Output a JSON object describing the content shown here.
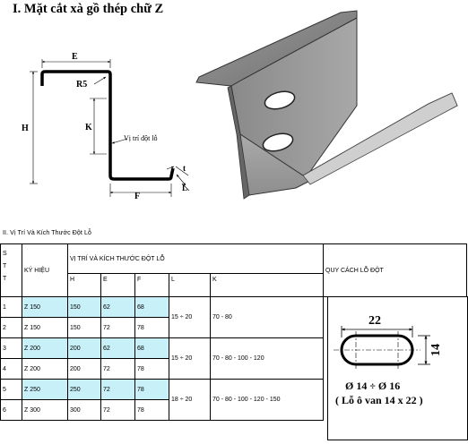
{
  "title": "I. Mặt cắt xà gồ thép chữ Z",
  "drawing_labels": {
    "E": "E",
    "R5": "R5",
    "H": "H",
    "K": "K",
    "hole_pos": "Vị trí đột lỗ",
    "t": "t",
    "L": "L",
    "F": "F"
  },
  "section2": "II. Vị Trí Và Kích Thước Đột Lỗ",
  "table": {
    "stt_letters": [
      "S",
      "T",
      "T"
    ],
    "ky_hieu": "KÝ HIỆU",
    "vitri_header": "VỊ TRÍ VÀ KÍCH THƯỚC ĐỘT LỖ",
    "quycach_header": "QUY CÁCH LỖ ĐỘT",
    "sub_headers": [
      "H",
      "E",
      "F",
      "L",
      "K"
    ],
    "rows": [
      {
        "stt": "1",
        "kh": "Z 150",
        "h": "150",
        "e": "62",
        "f": "68"
      },
      {
        "stt": "2",
        "kh": "Z 150",
        "h": "150",
        "e": "72",
        "f": "78"
      },
      {
        "stt": "3",
        "kh": "Z 200",
        "h": "200",
        "e": "62",
        "f": "68"
      },
      {
        "stt": "4",
        "kh": "Z 200",
        "h": "200",
        "e": "72",
        "f": "78"
      },
      {
        "stt": "5",
        "kh": "Z 250",
        "h": "250",
        "e": "72",
        "f": "78"
      },
      {
        "stt": "6",
        "kh": "Z 300",
        "h": "300",
        "e": "72",
        "f": "78"
      }
    ],
    "groups": [
      {
        "l": "15 ÷ 20",
        "k": "70 - 80"
      },
      {
        "l": "15 ÷ 20",
        "k": "70 - 80 - 100 - 120"
      },
      {
        "l": "18 ÷ 20",
        "k": "70 - 80 - 100 - 120 - 150"
      }
    ]
  },
  "hole_spec": {
    "width": "22",
    "height": "14",
    "dia": "Ø 14 ÷ Ø 16",
    "oval": "( Lỗ ô van 14 x 22 )"
  }
}
